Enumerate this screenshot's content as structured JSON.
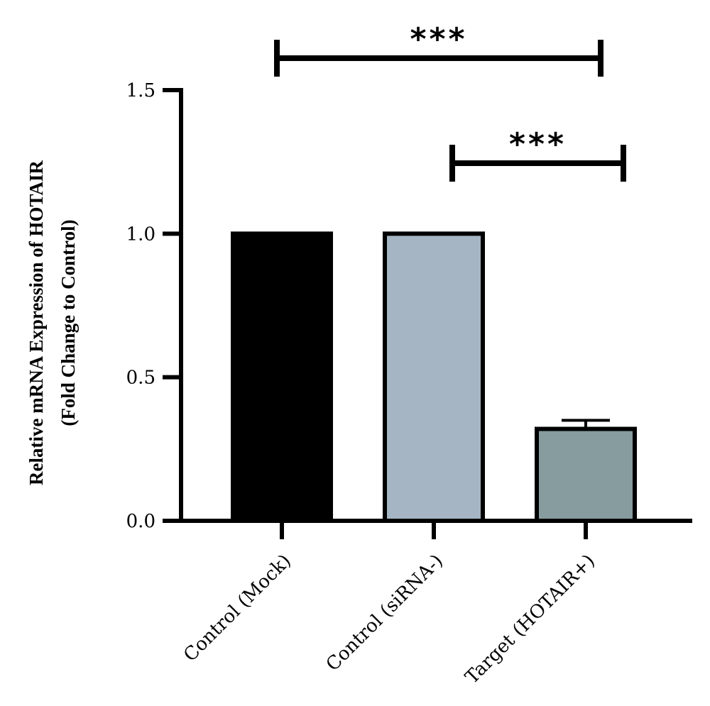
{
  "chart_data": {
    "type": "bar",
    "categories": [
      "Control (Mock)",
      "Control (siRNA-)",
      "Target (HOTAIR+)"
    ],
    "values": [
      1.0,
      1.0,
      0.32
    ],
    "errors": [
      0,
      0,
      0.03
    ],
    "colors": [
      "#000000",
      "#a5b5c3",
      "#869c9e"
    ],
    "ylabel_line1": "Relative mRNA Expression of HOTAIR",
    "ylabel_line2": "(Fold Change to Control)",
    "xlabel": "",
    "ylim": [
      0,
      1.5
    ],
    "yticks": [
      "0.0",
      "0.5",
      "1.0",
      "1.5"
    ],
    "significance": [
      {
        "from": 0,
        "to": 2,
        "label": "***"
      },
      {
        "from": 1,
        "to": 2,
        "label": "***"
      }
    ]
  }
}
